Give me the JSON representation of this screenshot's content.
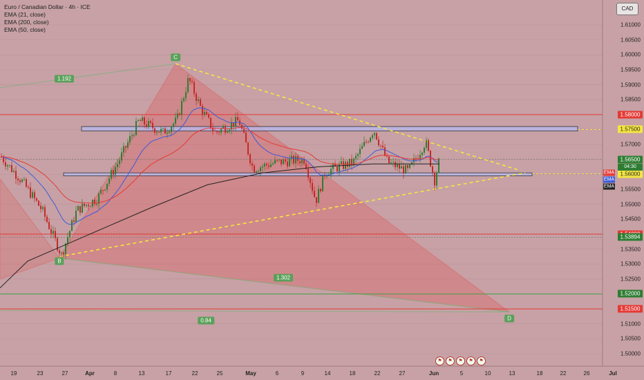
{
  "legend": {
    "title": "Euro / Canadian Dollar · 4h · ICE",
    "indicators": [
      "EMA (21, close)",
      "EMA (200, close)",
      "EMA (50, close)"
    ]
  },
  "currency": "CAD",
  "colors": {
    "background": "#c7a1a5",
    "up": "#2e7d32",
    "down": "#c62828",
    "pattern_fill": "#e05050",
    "trendline": "#f5e642",
    "red_line": "#e53935",
    "green_line": "#43a047",
    "ema21": "#3b5bdb",
    "ema50": "#e53935",
    "ema200": "#222222",
    "zone_fill": "#b6b8ea"
  },
  "chart_data": {
    "type": "candlestick",
    "price_ticks": [
      "1.61000",
      "1.60500",
      "1.60000",
      "1.59500",
      "1.59000",
      "1.58500",
      "1.58000",
      "1.57500",
      "1.57000",
      "1.56500",
      "1.56000",
      "1.55500",
      "1.55000",
      "1.54500",
      "1.54000",
      "1.53500",
      "1.53000",
      "1.52500",
      "1.52000",
      "1.51500",
      "1.51000",
      "1.50500",
      "1.50000"
    ],
    "time_ticks": [
      {
        "label": "19",
        "bold": false
      },
      {
        "label": "23",
        "bold": false
      },
      {
        "label": "27",
        "bold": false
      },
      {
        "label": "Apr",
        "bold": true
      },
      {
        "label": "8",
        "bold": false
      },
      {
        "label": "13",
        "bold": false
      },
      {
        "label": "17",
        "bold": false
      },
      {
        "label": "22",
        "bold": false
      },
      {
        "label": "25",
        "bold": false
      },
      {
        "label": "May",
        "bold": true
      },
      {
        "label": "6",
        "bold": false
      },
      {
        "label": "9",
        "bold": false
      },
      {
        "label": "14",
        "bold": false
      },
      {
        "label": "18",
        "bold": false
      },
      {
        "label": "22",
        "bold": false
      },
      {
        "label": "27",
        "bold": false
      },
      {
        "label": "Jun",
        "bold": true
      },
      {
        "label": "5",
        "bold": false
      },
      {
        "label": "10",
        "bold": false
      },
      {
        "label": "13",
        "bold": false
      },
      {
        "label": "18",
        "bold": false
      },
      {
        "label": "22",
        "bold": false
      },
      {
        "label": "26",
        "bold": false
      },
      {
        "label": "Jul",
        "bold": true
      }
    ],
    "horizontal_levels": [
      {
        "price": 1.58,
        "label": "1.58000",
        "kind": "red"
      },
      {
        "price": 1.575,
        "label": "1.57500",
        "kind": "yellow"
      },
      {
        "price": 1.565,
        "label": "1.56500",
        "kind": "green"
      },
      {
        "price": 1.56,
        "label": "1.56000",
        "kind": "yellow"
      },
      {
        "price": 1.54,
        "label": "1.54000",
        "kind": "red"
      },
      {
        "price": 1.53894,
        "label": "1.53894",
        "kind": "green"
      },
      {
        "price": 1.52,
        "label": "1.52000",
        "kind": "green"
      },
      {
        "price": 1.515,
        "label": "1.51500",
        "kind": "red"
      }
    ],
    "countdown": "04:30",
    "ema_tags": [
      "EMA",
      "EMA",
      "EMA"
    ],
    "pattern_points": [
      {
        "label": "B",
        "price": 1.532
      },
      {
        "label": "C",
        "price": 1.597
      },
      {
        "label": "D",
        "price": 1.514
      }
    ],
    "ratios": [
      "1.192",
      "1.302",
      "0.84"
    ],
    "zones": [
      {
        "top": 1.576,
        "bottom": 1.5745
      },
      {
        "top": 1.5605,
        "bottom": 1.5595
      }
    ]
  }
}
